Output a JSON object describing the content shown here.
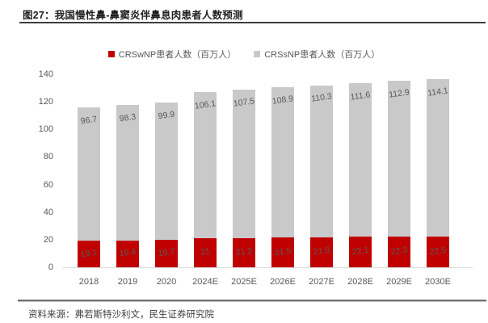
{
  "header": {
    "figure_title": "图27：我国慢性鼻-鼻窦炎伴鼻息肉患者人数预测"
  },
  "legend": {
    "items": [
      {
        "label": "CRSwNP患者人数（百万人）",
        "color": "#c00000"
      },
      {
        "label": "CRSsNP患者人数（百万人）",
        "color": "#c9c9c9"
      }
    ]
  },
  "footer": {
    "source_text": "资料来源：弗若斯特沙利文，民生证券研究院"
  },
  "chart_data": {
    "type": "bar",
    "stacked": true,
    "title": "我国慢性鼻-鼻窦炎伴鼻息肉患者人数预测",
    "categories": [
      "2018",
      "2019",
      "2020",
      "2024E",
      "2025E",
      "2026E",
      "2027E",
      "2028E",
      "2029E",
      "2030E"
    ],
    "series": [
      {
        "name": "CRSwNP患者人数（百万人）",
        "color": "#c00000",
        "label_color": "#595959",
        "values": [
          19.1,
          19.4,
          19.7,
          21,
          21.2,
          21.5,
          21.8,
          22.1,
          22.3,
          22.5
        ]
      },
      {
        "name": "CRSsNP患者人数（百万人）",
        "color": "#c9c9c9",
        "label_color": "#595959",
        "values": [
          96.7,
          98.3,
          99.9,
          106.1,
          107.5,
          108.9,
          110.3,
          111.6,
          112.9,
          114.1
        ]
      }
    ],
    "xlabel": "",
    "ylabel": "",
    "ylim": [
      0,
      140
    ],
    "ytick_step": 20,
    "yticks": [
      0,
      20,
      40,
      60,
      80,
      100,
      120,
      140
    ],
    "grid": false,
    "legend_position": "top"
  }
}
